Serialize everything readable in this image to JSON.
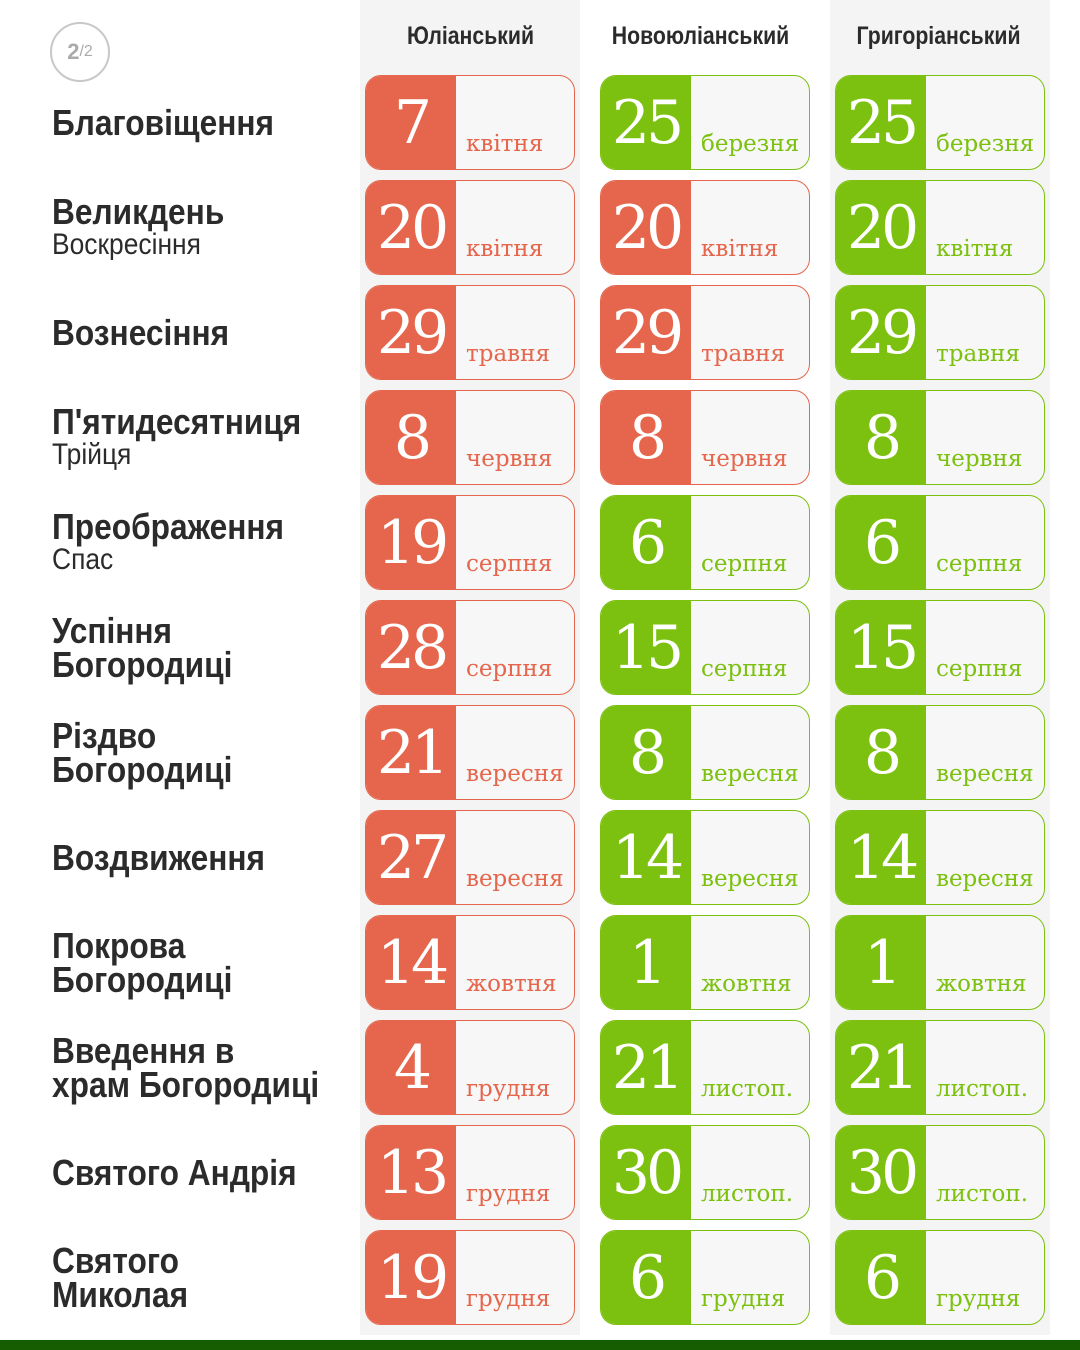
{
  "page_indicator": {
    "current": "2",
    "total": "/2"
  },
  "columns": [
    "Юліанський",
    "Новоюліанський",
    "Григоріанський"
  ],
  "colors": {
    "julian": "#e5664c",
    "green": "#7cc10f",
    "bottom_bar": "#165c00"
  },
  "rows": [
    {
      "title": "Благовіщення",
      "subtitle": "",
      "dates": [
        {
          "day": "7",
          "month": "квітня",
          "c": "r"
        },
        {
          "day": "25",
          "month": "березня",
          "c": "g"
        },
        {
          "day": "25",
          "month": "березня",
          "c": "g"
        }
      ]
    },
    {
      "title": "Великдень",
      "subtitle": "Воскресіння",
      "dates": [
        {
          "day": "20",
          "month": "квітня",
          "c": "r"
        },
        {
          "day": "20",
          "month": "квітня",
          "c": "r"
        },
        {
          "day": "20",
          "month": "квітня",
          "c": "g"
        }
      ]
    },
    {
      "title": "Вознесіння",
      "subtitle": "",
      "dates": [
        {
          "day": "29",
          "month": "травня",
          "c": "r"
        },
        {
          "day": "29",
          "month": "травня",
          "c": "r"
        },
        {
          "day": "29",
          "month": "травня",
          "c": "g"
        }
      ]
    },
    {
      "title": "П'ятидесятниця",
      "subtitle": "Трійця",
      "dates": [
        {
          "day": "8",
          "month": "червня",
          "c": "r"
        },
        {
          "day": "8",
          "month": "червня",
          "c": "r"
        },
        {
          "day": "8",
          "month": "червня",
          "c": "g"
        }
      ]
    },
    {
      "title": "Преображення",
      "subtitle": "Спас",
      "dates": [
        {
          "day": "19",
          "month": "серпня",
          "c": "r"
        },
        {
          "day": "6",
          "month": "серпня",
          "c": "g"
        },
        {
          "day": "6",
          "month": "серпня",
          "c": "g"
        }
      ]
    },
    {
      "title": "Успіння Богородиці",
      "subtitle": "",
      "dates": [
        {
          "day": "28",
          "month": "серпня",
          "c": "r"
        },
        {
          "day": "15",
          "month": "серпня",
          "c": "g"
        },
        {
          "day": "15",
          "month": "серпня",
          "c": "g"
        }
      ]
    },
    {
      "title": "Різдво Богородиці",
      "subtitle": "",
      "dates": [
        {
          "day": "21",
          "month": "вересня",
          "c": "r"
        },
        {
          "day": "8",
          "month": "вересня",
          "c": "g"
        },
        {
          "day": "8",
          "month": "вересня",
          "c": "g"
        }
      ]
    },
    {
      "title": "Воздвиження",
      "subtitle": "",
      "dates": [
        {
          "day": "27",
          "month": "вересня",
          "c": "r"
        },
        {
          "day": "14",
          "month": "вересня",
          "c": "g"
        },
        {
          "day": "14",
          "month": "вересня",
          "c": "g"
        }
      ]
    },
    {
      "title": "Покрова Богородиці",
      "subtitle": "",
      "dates": [
        {
          "day": "14",
          "month": "жовтня",
          "c": "r"
        },
        {
          "day": "1",
          "month": "жовтня",
          "c": "g"
        },
        {
          "day": "1",
          "month": "жовтня",
          "c": "g"
        }
      ]
    },
    {
      "title": "Введення в храм Богородиці",
      "subtitle": "",
      "dates": [
        {
          "day": "4",
          "month": "грудня",
          "c": "r"
        },
        {
          "day": "21",
          "month": "листоп.",
          "c": "g"
        },
        {
          "day": "21",
          "month": "листоп.",
          "c": "g"
        }
      ]
    },
    {
      "title": "Святого Андрія",
      "subtitle": "",
      "dates": [
        {
          "day": "13",
          "month": "грудня",
          "c": "r"
        },
        {
          "day": "30",
          "month": "листоп.",
          "c": "g"
        },
        {
          "day": "30",
          "month": "листоп.",
          "c": "g"
        }
      ]
    },
    {
      "title": "Святого Миколая",
      "subtitle": "",
      "dates": [
        {
          "day": "19",
          "month": "грудня",
          "c": "r"
        },
        {
          "day": "6",
          "month": "грудня",
          "c": "g"
        },
        {
          "day": "6",
          "month": "грудня",
          "c": "g"
        }
      ]
    }
  ]
}
